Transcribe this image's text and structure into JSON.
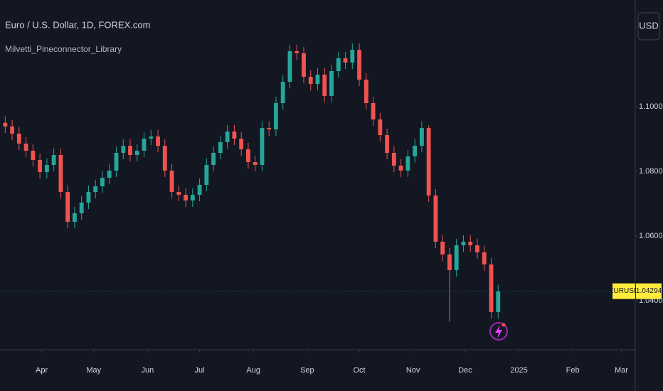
{
  "header": {
    "symbol_title": "Euro / U.S. Dollar, 1D, FOREX.com",
    "indicator": "Milvetti_Pineconnector_Library",
    "currency_button": "USD"
  },
  "chart_data": {
    "type": "candlestick",
    "x": [
      "2024-03-11",
      "2024-03-15",
      "2024-03-19",
      "2024-03-23",
      "2024-03-27",
      "2024-03-31",
      "2024-04-04",
      "2024-04-08",
      "2024-04-12",
      "2024-04-16",
      "2024-04-20",
      "2024-04-24",
      "2024-04-28",
      "2024-05-02",
      "2024-05-06",
      "2024-05-10",
      "2024-05-14",
      "2024-05-18",
      "2024-05-22",
      "2024-05-26",
      "2024-05-30",
      "2024-06-03",
      "2024-06-07",
      "2024-06-11",
      "2024-06-15",
      "2024-06-19",
      "2024-06-23",
      "2024-06-27",
      "2024-07-01",
      "2024-07-05",
      "2024-07-09",
      "2024-07-13",
      "2024-07-17",
      "2024-07-21",
      "2024-07-25",
      "2024-07-29",
      "2024-08-02",
      "2024-08-06",
      "2024-08-10",
      "2024-08-14",
      "2024-08-18",
      "2024-08-22",
      "2024-08-26",
      "2024-08-30",
      "2024-09-03",
      "2024-09-07",
      "2024-09-11",
      "2024-09-15",
      "2024-09-19",
      "2024-09-23",
      "2024-09-27",
      "2024-10-01",
      "2024-10-05",
      "2024-10-09",
      "2024-10-13",
      "2024-10-17",
      "2024-10-21",
      "2024-10-25",
      "2024-10-29",
      "2024-11-02",
      "2024-11-06",
      "2024-11-10",
      "2024-11-14",
      "2024-11-18",
      "2024-11-22",
      "2024-11-26",
      "2024-11-30",
      "2024-12-04",
      "2024-12-08",
      "2024-12-12",
      "2024-12-16",
      "2024-12-20"
    ],
    "open": [
      1.095,
      1.09385,
      1.09165,
      1.08857,
      1.08637,
      1.08352,
      1.07978,
      1.08198,
      1.08505,
      1.07362,
      1.06439,
      1.06703,
      1.07033,
      1.07362,
      1.07538,
      1.07802,
      1.08022,
      1.08571,
      1.08791,
      1.08505,
      1.08637,
      1.09011,
      1.09077,
      1.08791,
      1.08022,
      1.07362,
      1.07274,
      1.07099,
      1.07274,
      1.07582,
      1.08198,
      1.08571,
      1.08901,
      1.09231,
      1.09011,
      1.08681,
      1.08286,
      1.08198,
      1.09341,
      1.09297,
      1.1011,
      1.10769,
      1.11714,
      1.1165,
      1.10923,
      1.10703,
      1.10989,
      1.1033,
      1.11099,
      1.11495,
      1.11363,
      1.11758,
      1.10835,
      1.1011,
      1.09604,
      1.09121,
      1.08571,
      1.08176,
      1.08022,
      1.08461,
      1.08791,
      1.09341,
      1.07253,
      1.05824,
      1.05428,
      1.04945,
      1.05714,
      1.05824,
      1.05714,
      1.05494,
      1.0512,
      1.0365
    ],
    "high": [
      1.097,
      1.09585,
      1.09365,
      1.09057,
      1.08837,
      1.08552,
      1.08398,
      1.08705,
      1.08705,
      1.07562,
      1.06903,
      1.07233,
      1.07562,
      1.07738,
      1.08002,
      1.08222,
      1.08771,
      1.08991,
      1.08991,
      1.08837,
      1.09211,
      1.09277,
      1.09277,
      1.08991,
      1.08222,
      1.07562,
      1.07474,
      1.07474,
      1.07782,
      1.08398,
      1.08771,
      1.09101,
      1.09431,
      1.09431,
      1.09211,
      1.08881,
      1.08486,
      1.09541,
      1.09541,
      1.1031,
      1.10969,
      1.11914,
      1.11914,
      1.1185,
      1.11123,
      1.11189,
      1.11189,
      1.11299,
      1.11695,
      1.11695,
      1.11958,
      1.11958,
      1.11035,
      1.1031,
      1.09804,
      1.09321,
      1.08771,
      1.08376,
      1.08661,
      1.08991,
      1.09541,
      1.0942,
      1.07453,
      1.06024,
      1.05628,
      1.05914,
      1.06024,
      1.06024,
      1.05914,
      1.05694,
      1.0532,
      1.04494
    ],
    "low": [
      1.09185,
      1.08965,
      1.08657,
      1.08437,
      1.08152,
      1.07778,
      1.07778,
      1.07998,
      1.07162,
      1.06239,
      1.06239,
      1.06503,
      1.06833,
      1.07162,
      1.07338,
      1.07602,
      1.07822,
      1.08371,
      1.08305,
      1.08305,
      1.08437,
      1.08811,
      1.08591,
      1.07822,
      1.07162,
      1.07074,
      1.06899,
      1.06899,
      1.07074,
      1.07382,
      1.07998,
      1.08371,
      1.08701,
      1.08811,
      1.08481,
      1.08086,
      1.07998,
      1.07998,
      1.09097,
      1.09097,
      1.0991,
      1.10569,
      1.1145,
      1.10723,
      1.10503,
      1.10503,
      1.1013,
      1.1013,
      1.10899,
      1.11163,
      1.11163,
      1.10635,
      1.0991,
      1.09404,
      1.08921,
      1.08371,
      1.07976,
      1.07822,
      1.07822,
      1.08261,
      1.08591,
      1.07053,
      1.05624,
      1.05228,
      1.03352,
      1.04745,
      1.05514,
      1.05514,
      1.05294,
      1.0492,
      1.0345,
      1.0345
    ],
    "close": [
      1.09385,
      1.09165,
      1.08857,
      1.08637,
      1.08352,
      1.07978,
      1.08198,
      1.08505,
      1.07362,
      1.06439,
      1.06703,
      1.07033,
      1.07362,
      1.07538,
      1.07802,
      1.08022,
      1.08571,
      1.08791,
      1.08505,
      1.08637,
      1.09011,
      1.09077,
      1.08791,
      1.08022,
      1.07362,
      1.07274,
      1.07099,
      1.07274,
      1.07582,
      1.08198,
      1.08571,
      1.08901,
      1.09231,
      1.09011,
      1.08681,
      1.08286,
      1.08198,
      1.09341,
      1.09297,
      1.1011,
      1.10769,
      1.11714,
      1.1165,
      1.10923,
      1.10703,
      1.10989,
      1.1033,
      1.11099,
      1.11495,
      1.11363,
      1.11758,
      1.10835,
      1.1011,
      1.09604,
      1.09121,
      1.08571,
      1.08176,
      1.08022,
      1.08461,
      1.08791,
      1.09341,
      1.07253,
      1.05824,
      1.05428,
      1.04945,
      1.05714,
      1.05824,
      1.05714,
      1.05494,
      1.0512,
      1.0365,
      1.04294
    ],
    "up_color": "#26a69a",
    "down_color": "#ef5350",
    "xlim": [
      "2024-03-08",
      "2025-03-09"
    ],
    "ylim": [
      1.02483,
      1.13297
    ],
    "yticks": [
      {
        "value": 1.04,
        "label": "1.04000"
      },
      {
        "value": 1.06,
        "label": "1.06000"
      },
      {
        "value": 1.08,
        "label": "1.08000"
      },
      {
        "value": 1.1,
        "label": "1.10000"
      }
    ],
    "xticks": [
      {
        "value": "2024-04-01",
        "label": "Apr"
      },
      {
        "value": "2024-05-01",
        "label": "May"
      },
      {
        "value": "2024-06-01",
        "label": "Jun"
      },
      {
        "value": "2024-07-01",
        "label": "Jul"
      },
      {
        "value": "2024-08-01",
        "label": "Aug"
      },
      {
        "value": "2024-09-01",
        "label": "Sep"
      },
      {
        "value": "2024-10-01",
        "label": "Oct"
      },
      {
        "value": "2024-11-01",
        "label": "Nov"
      },
      {
        "value": "2024-12-01",
        "label": "Dec"
      },
      {
        "value": "2025-01-01",
        "label": "2025"
      },
      {
        "value": "2025-02-01",
        "label": "Feb"
      },
      {
        "value": "2025-03-01",
        "label": "Mar"
      }
    ],
    "last_price": {
      "symbol": "EURUSD",
      "value": 1.04294
    }
  }
}
